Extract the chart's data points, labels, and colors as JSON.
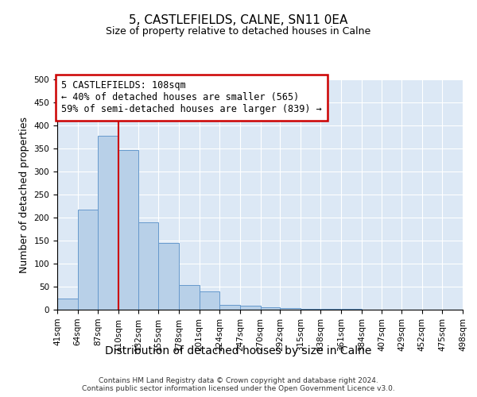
{
  "title": "5, CASTLEFIELDS, CALNE, SN11 0EA",
  "subtitle": "Size of property relative to detached houses in Calne",
  "xlabel": "Distribution of detached houses by size in Calne",
  "ylabel": "Number of detached properties",
  "bin_labels": [
    "41sqm",
    "64sqm",
    "87sqm",
    "110sqm",
    "132sqm",
    "155sqm",
    "178sqm",
    "201sqm",
    "224sqm",
    "247sqm",
    "270sqm",
    "292sqm",
    "315sqm",
    "338sqm",
    "361sqm",
    "384sqm",
    "407sqm",
    "429sqm",
    "452sqm",
    "475sqm",
    "498sqm"
  ],
  "bin_edges": [
    41,
    64,
    87,
    110,
    132,
    155,
    178,
    201,
    224,
    247,
    270,
    292,
    315,
    338,
    361,
    384,
    407,
    429,
    452,
    475,
    498
  ],
  "bar_heights": [
    25,
    218,
    378,
    347,
    190,
    144,
    53,
    40,
    11,
    8,
    5,
    3,
    1,
    1,
    1,
    0,
    0,
    0,
    0,
    0
  ],
  "bar_color": "#b8d0e8",
  "bar_edge_color": "#6699cc",
  "vline_x": 110,
  "vline_color": "#cc0000",
  "annotation_text": "5 CASTLEFIELDS: 108sqm\n← 40% of detached houses are smaller (565)\n59% of semi-detached houses are larger (839) →",
  "annotation_box_color": "#ffffff",
  "annotation_box_edge_color": "#cc0000",
  "ylim": [
    0,
    500
  ],
  "xlim_left": 41,
  "xlim_right": 498,
  "background_color": "#dce8f5",
  "footer_line1": "Contains HM Land Registry data © Crown copyright and database right 2024.",
  "footer_line2": "Contains public sector information licensed under the Open Government Licence v3.0.",
  "title_fontsize": 11,
  "subtitle_fontsize": 9,
  "ylabel_fontsize": 9,
  "xlabel_fontsize": 10,
  "tick_fontsize": 7.5,
  "annot_fontsize": 8.5
}
